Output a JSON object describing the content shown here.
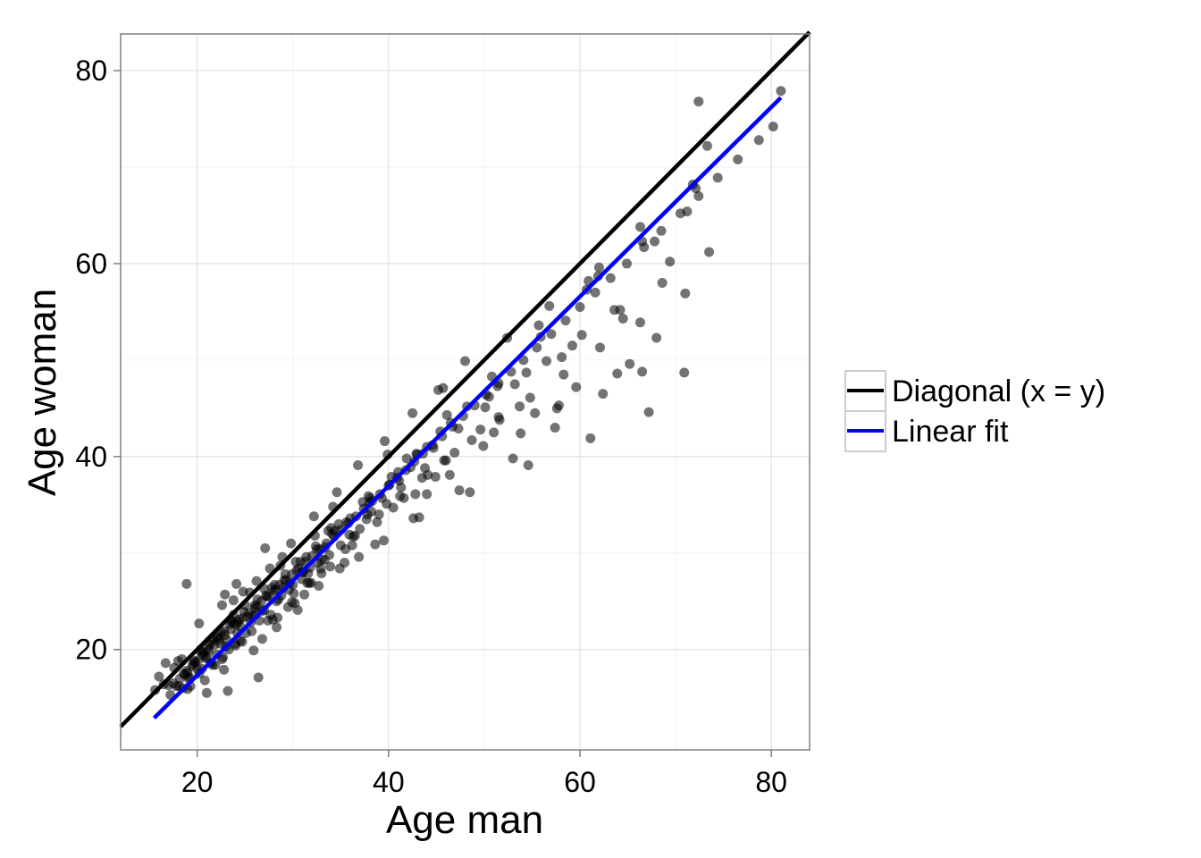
{
  "chart_data": {
    "type": "scatter",
    "xlabel": "Age man",
    "ylabel": "Age woman",
    "xlim": [
      12,
      84
    ],
    "ylim": [
      9.6,
      83.8
    ],
    "x_ticks": [
      20,
      40,
      60,
      80
    ],
    "y_ticks": [
      20,
      40,
      60,
      80
    ],
    "x_tick_labels": [
      "20",
      "40",
      "60",
      "80"
    ],
    "y_tick_labels": [
      "20",
      "40",
      "60",
      "80"
    ],
    "minor_grid_x": [
      30,
      50,
      70
    ],
    "minor_grid_y": [
      30,
      50,
      70
    ],
    "grid": true,
    "legend_position": "right",
    "series": [
      {
        "name": "Diagonal (x = y)",
        "kind": "line",
        "color": "#000000",
        "x": [
          12,
          84
        ],
        "y": [
          12,
          84
        ]
      },
      {
        "name": "Linear fit",
        "kind": "line",
        "color": "#0000ff",
        "x": [
          15.5,
          81.0
        ],
        "y": [
          12.9,
          77.2
        ]
      }
    ],
    "points": {
      "color": "#000000",
      "opacity": 0.55,
      "x": [
        17.0,
        18.2,
        18.9,
        19.5,
        20.1,
        20.6,
        21.2,
        21.8,
        22.3,
        22.9,
        23.5,
        24.1,
        24.8,
        25.4,
        26.0,
        26.7,
        27.3,
        28.0,
        28.6,
        29.3,
        29.9,
        30.6,
        31.3,
        32.0,
        32.8,
        33.5,
        34.3,
        35.0,
        35.8,
        36.6,
        37.4,
        38.3,
        39.1,
        40.0,
        40.9,
        41.8,
        42.7,
        43.6,
        44.6,
        45.6,
        46.7,
        47.8,
        49.0,
        50.2,
        51.5,
        52.8,
        54.1,
        55.5,
        57.0,
        58.5,
        60.0,
        61.6,
        63.2,
        64.9,
        66.7,
        68.5,
        70.5,
        72.4,
        74.4,
        76.5,
        78.7,
        80.2,
        81.0,
        16.0,
        17.5,
        18.5,
        19.0,
        19.8,
        20.5,
        21.0,
        21.5,
        22.0,
        22.5,
        23.0,
        23.6,
        24.2,
        24.9,
        25.6,
        26.3,
        27.0,
        27.8,
        28.5,
        29.2,
        30.0,
        30.8,
        31.6,
        32.4,
        33.3,
        34.1,
        35.0,
        36.0,
        37.0,
        38.0,
        39.0,
        40.1,
        41.2,
        42.3,
        43.5,
        44.7,
        46.0,
        47.3,
        48.7,
        50.1,
        51.6,
        53.2,
        54.8,
        56.5,
        58.3,
        60.2,
        62.1,
        64.2,
        66.3,
        68.6,
        71.0,
        73.5,
        18.0,
        19.2,
        20.3,
        21.4,
        22.1,
        23.3,
        24.4,
        25.1,
        26.2,
        27.4,
        28.1,
        29.5,
        30.4,
        31.7,
        32.5,
        33.9,
        34.8,
        36.2,
        37.3,
        38.8,
        40.3,
        41.6,
        42.9,
        44.1,
        45.4,
        46.9,
        48.2,
        49.6,
        51.4,
        53.7,
        55.9,
        58.1,
        60.7,
        63.6,
        66.5,
        69.4,
        72.1,
        19.0,
        20.0,
        20.8,
        21.7,
        22.6,
        23.8,
        24.5,
        25.5,
        26.5,
        27.6,
        28.8,
        29.8,
        31.0,
        32.2,
        33.4,
        34.6,
        35.6,
        36.8,
        38.1,
        39.6,
        41.0,
        42.5,
        44.0,
        45.2,
        46.5,
        48.0,
        50.5,
        52.4,
        54.4,
        56.8,
        59.2,
        61.9,
        64.5,
        67.8,
        71.2,
        18.6,
        20.4,
        21.9,
        23.1,
        24.7,
        26.1,
        27.9,
        29.6,
        31.2,
        33.0,
        34.9,
        36.5,
        38.6,
        40.5,
        42.6,
        44.9,
        47.4,
        49.9,
        53.0,
        55.3,
        57.4,
        59.6,
        62.4,
        65.2,
        68.0,
        19.3,
        21.1,
        22.8,
        24.3,
        25.9,
        27.2,
        28.3,
        29.1,
        30.2,
        31.4,
        32.7,
        33.7,
        35.4,
        37.8,
        39.5,
        41.3,
        43.2,
        45.8,
        48.5,
        51.0,
        54.6,
        57.8,
        61.1,
        63.9,
        67.2,
        70.9,
        18.9,
        23.8,
        24.0,
        27.1,
        30.5,
        33.0,
        35.5,
        38.2,
        44.0,
        46.4,
        51.5,
        53.8,
        57.6,
        62.0,
        66.5,
        72.4,
        73.3,
        17.6,
        18.4,
        19.6,
        20.7,
        21.3,
        22.2,
        22.8,
        23.4,
        24.6,
        25.3,
        26.0,
        26.8,
        27.5,
        28.3,
        29.0,
        29.7,
        30.9,
        31.8,
        32.6,
        15.6,
        16.5,
        17.2,
        18.1,
        19.1,
        20.2,
        21.6,
        22.7,
        24.0,
        25.7,
        27.7,
        30.1,
        32.9,
        36.3,
        39.8,
        43.8,
        16.7,
        17.8,
        18.7,
        19.7,
        20.9,
        22.4,
        23.9,
        25.8,
        28.2,
        31.1,
        34.4,
        37.9,
        41.9,
        46.1,
        50.8,
        55.7,
        60.9,
        66.3,
        71.8,
        20.2,
        21.0,
        22.6,
        23.2,
        24.8,
        26.4,
        28.9,
        31.5,
        34.2,
        36.9,
        39.9,
        42.8,
        45.7,
        26.8,
        28.4,
        29.9,
        31.9,
        33.8,
        35.9,
        37.7,
        39.3,
        41.1,
        43.0,
        22.9,
        23.5,
        24.1,
        25.0,
        26.2,
        27.0,
        28.7,
        30.3,
        32.3,
        34.0
      ],
      "y": [
        16.3,
        17.0,
        17.8,
        18.3,
        18.9,
        19.4,
        19.9,
        20.5,
        21.0,
        21.5,
        22.1,
        22.6,
        23.3,
        23.8,
        24.3,
        25.0,
        25.5,
        26.1,
        26.7,
        27.2,
        27.8,
        28.4,
        29.1,
        29.7,
        30.4,
        31.0,
        31.7,
        32.4,
        33.1,
        33.8,
        34.6,
        35.4,
        36.1,
        37.0,
        37.8,
        38.6,
        39.5,
        40.3,
        41.2,
        42.1,
        43.1,
        44.2,
        45.3,
        46.4,
        47.6,
        48.8,
        50.0,
        51.3,
        52.7,
        54.1,
        55.5,
        57.0,
        58.5,
        60.0,
        61.7,
        63.4,
        65.2,
        67.0,
        68.9,
        70.8,
        72.8,
        74.2,
        77.9,
        17.2,
        16.5,
        16.0,
        17.6,
        18.7,
        18.0,
        19.2,
        20.8,
        19.5,
        21.8,
        20.3,
        22.9,
        21.7,
        23.9,
        22.8,
        25.2,
        24.1,
        26.4,
        25.2,
        27.8,
        26.7,
        29.1,
        27.9,
        30.7,
        29.3,
        32.0,
        30.8,
        33.6,
        32.5,
        35.2,
        34.0,
        37.1,
        35.9,
        38.9,
        37.8,
        40.9,
        39.6,
        42.9,
        41.7,
        45.1,
        43.8,
        47.5,
        46.1,
        49.9,
        48.5,
        52.6,
        51.3,
        55.2,
        53.9,
        58.0,
        56.9,
        61.2,
        18.8,
        17.1,
        19.9,
        18.6,
        21.2,
        20.0,
        23.1,
        21.7,
        24.5,
        23.0,
        26.7,
        24.4,
        28.2,
        26.9,
        30.4,
        28.6,
        33.0,
        30.8,
        35.3,
        33.2,
        37.9,
        35.7,
        40.3,
        38.1,
        42.6,
        40.4,
        45.2,
        42.8,
        47.3,
        45.2,
        52.4,
        50.3,
        57.3,
        55.2,
        62.3,
        60.2,
        67.8,
        15.9,
        18.0,
        16.8,
        21.1,
        19.0,
        23.6,
        20.9,
        25.9,
        23.0,
        28.4,
        25.6,
        31.0,
        28.0,
        33.8,
        30.6,
        36.3,
        33.2,
        39.1,
        35.7,
        41.6,
        38.4,
        44.5,
        41.0,
        46.9,
        43.5,
        49.9,
        46.2,
        52.3,
        48.7,
        55.6,
        51.5,
        58.7,
        54.3,
        62.3,
        65.4,
        17.5,
        19.8,
        18.4,
        21.0,
        20.8,
        23.6,
        23.1,
        26.2,
        25.7,
        29.3,
        28.4,
        31.8,
        30.9,
        34.7,
        33.6,
        37.9,
        36.5,
        41.1,
        39.8,
        44.5,
        43.0,
        47.2,
        46.5,
        49.6,
        52.3,
        16.2,
        20.1,
        17.9,
        22.9,
        19.9,
        25.6,
        22.3,
        27.2,
        24.8,
        29.6,
        26.6,
        32.3,
        29.0,
        34.0,
        31.3,
        36.8,
        33.7,
        39.6,
        36.3,
        42.5,
        39.1,
        45.3,
        41.9,
        48.6,
        44.6,
        48.7,
        26.8,
        25.1,
        20.6,
        30.5,
        24.1,
        27.9,
        30.4,
        34.3,
        36.1,
        38.1,
        44.1,
        42.4,
        45.0,
        59.6,
        48.8,
        76.8,
        72.2,
        18.1,
        19.0,
        18.5,
        19.7,
        20.5,
        21.4,
        21.9,
        22.6,
        22.3,
        23.4,
        24.6,
        24.0,
        25.5,
        25.0,
        26.4,
        26.9,
        27.3,
        28.5,
        29.0,
        15.8,
        16.4,
        15.3,
        16.2,
        17.0,
        17.5,
        18.4,
        19.2,
        20.4,
        21.9,
        23.6,
        25.8,
        28.4,
        31.7,
        35.1,
        38.8,
        18.6,
        16.2,
        17.4,
        18.8,
        19.1,
        20.6,
        22.7,
        23.5,
        26.2,
        28.1,
        32.3,
        35.9,
        39.8,
        44.3,
        48.3,
        53.6,
        58.2,
        63.8,
        68.2,
        22.7,
        15.5,
        24.6,
        15.7,
        26.0,
        17.1,
        29.6,
        26.9,
        34.8,
        29.6,
        40.2,
        36.1,
        47.1,
        21.1,
        23.3,
        24.9,
        26.9,
        29.8,
        31.9,
        33.5,
        35.7,
        37.5,
        40.2,
        25.7,
        23.1,
        26.8,
        24.6,
        27.1,
        26.3,
        28.7,
        29.1,
        31.8,
        32.6
      ]
    }
  }
}
